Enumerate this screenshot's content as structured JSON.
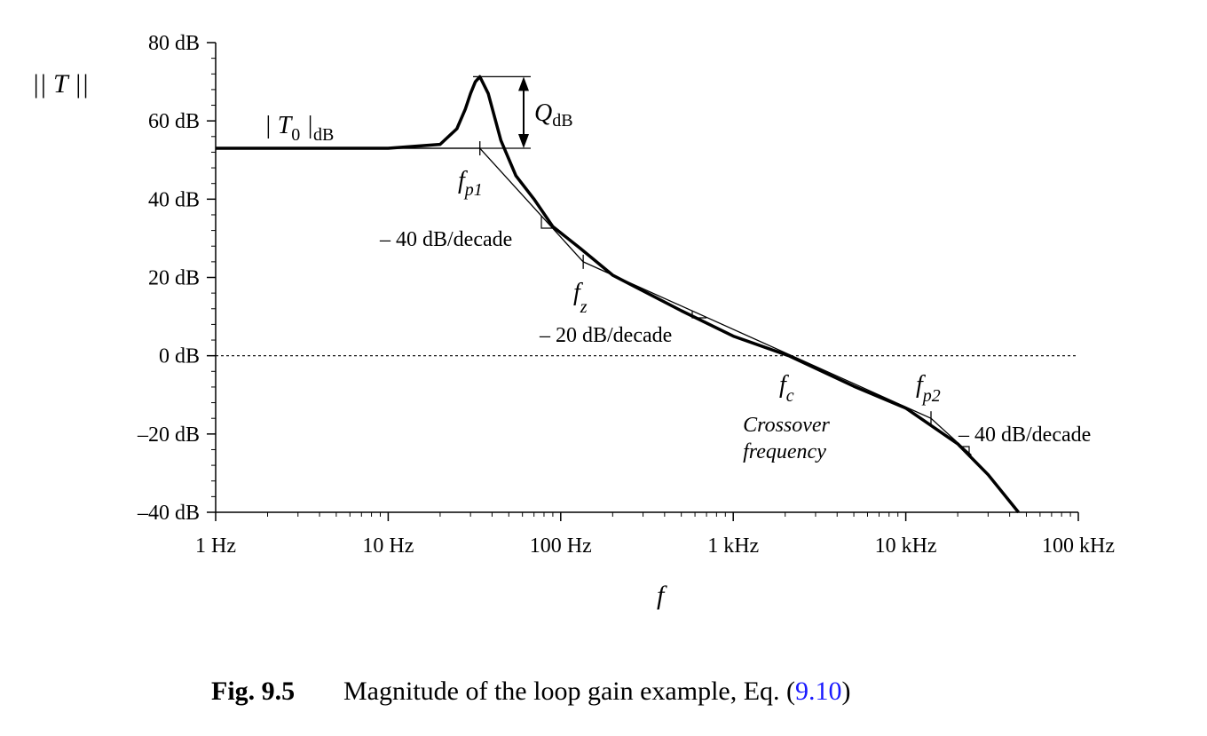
{
  "chart_data": {
    "type": "line",
    "y_label": "|| T ||",
    "x_label": "f",
    "log_x": true,
    "xlim": [
      1,
      100000
    ],
    "ylim": [
      -40,
      80
    ],
    "xticks": [
      {
        "value": 1,
        "label": "1 Hz"
      },
      {
        "value": 10,
        "label": "10 Hz"
      },
      {
        "value": 100,
        "label": "100 Hz"
      },
      {
        "value": 1000,
        "label": "1 kHz"
      },
      {
        "value": 10000,
        "label": "10 kHz"
      },
      {
        "value": 100000,
        "label": "100 kHz"
      }
    ],
    "xminorticks": [
      2,
      3,
      4,
      5,
      6,
      7,
      8,
      9,
      20,
      30,
      40,
      50,
      60,
      70,
      80,
      90,
      200,
      300,
      400,
      500,
      600,
      700,
      800,
      900,
      2000,
      3000,
      4000,
      5000,
      6000,
      7000,
      8000,
      9000,
      20000,
      30000,
      40000,
      50000,
      60000,
      70000,
      80000,
      90000
    ],
    "yticks": [
      {
        "value": 80,
        "label": "80 dB"
      },
      {
        "value": 60,
        "label": "60 dB"
      },
      {
        "value": 40,
        "label": "40 dB"
      },
      {
        "value": 20,
        "label": "20 dB"
      },
      {
        "value": 0,
        "label": "0 dB"
      },
      {
        "value": -20,
        "label": "–20 dB"
      },
      {
        "value": -40,
        "label": "–40 dB"
      }
    ],
    "yminorticks": [
      76,
      72,
      68,
      64,
      56,
      52,
      48,
      44,
      36,
      32,
      28,
      24,
      16,
      12,
      8,
      4,
      -4,
      -8,
      -12,
      -16,
      -24,
      -28,
      -32,
      -36
    ],
    "zero_line": true,
    "series": [
      {
        "name": "Magnitude",
        "color": "#000000",
        "x": [
          1,
          10,
          20,
          25,
          28,
          30,
          32,
          34,
          38,
          45,
          55,
          70,
          90,
          130,
          200,
          500,
          1000,
          2100,
          5000,
          10000,
          20000,
          30000,
          45000
        ],
        "values": [
          53,
          53,
          54,
          58,
          63,
          67,
          70,
          71.3,
          67,
          55,
          46,
          40,
          33,
          27.4,
          20.6,
          11.5,
          5,
          0,
          -7.8,
          -13.4,
          -22.5,
          -30.4,
          -40
        ]
      },
      {
        "name": "Asymptotes",
        "color": "#000000",
        "x": [
          1,
          34,
          135,
          14000,
          24000
        ],
        "values": [
          53,
          53,
          24,
          -16,
          -25.4
        ]
      }
    ],
    "annotations": {
      "t0": {
        "main": "| T",
        "sub": "0",
        "mid": " |",
        "sub2": "dB"
      },
      "q": {
        "main": "Q",
        "sub": "dB"
      },
      "fp1": {
        "main": "f",
        "sub": "p1"
      },
      "fz": {
        "main": "f",
        "sub": "z"
      },
      "fc": {
        "main": "f",
        "sub": "c"
      },
      "fp2": {
        "main": "f",
        "sub": "p2"
      },
      "slope1": "– 40 dB/decade",
      "slope2": "– 20 dB/decade",
      "slope3": "– 40 dB/decade",
      "crossover": [
        "Crossover",
        "frequency"
      ]
    },
    "caption": {
      "label": "Fig. 9.5",
      "text": "Magnitude of the loop gain example, Eq. (",
      "ref": "9.10",
      "end": ")"
    }
  }
}
